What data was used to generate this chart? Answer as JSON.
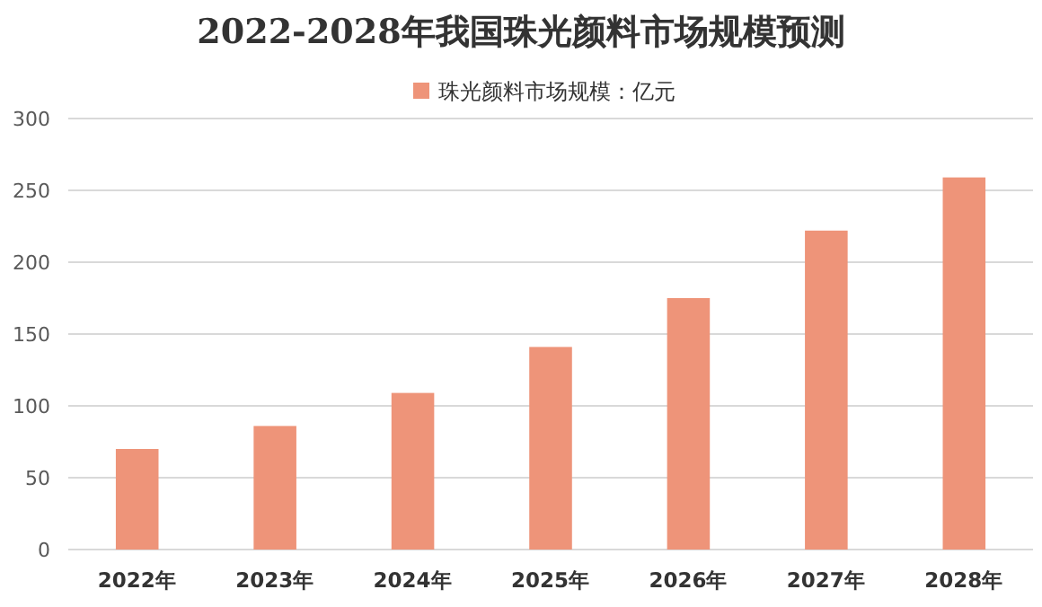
{
  "chart_data": {
    "type": "bar",
    "title": "2022-2028年我国珠光颜料市场规模预测",
    "categories": [
      "2022年",
      "2023年",
      "2024年",
      "2025年",
      "2026年",
      "2027年",
      "2028年"
    ],
    "series": [
      {
        "name": "珠光颜料市场规模：亿元",
        "color": "#ee9479",
        "values": [
          70,
          86,
          109,
          141,
          175,
          222,
          259
        ]
      }
    ],
    "ylim": [
      0,
      300
    ],
    "yticks": [
      0,
      50,
      100,
      150,
      200,
      250,
      300
    ],
    "grid": "y",
    "legend": "top"
  }
}
